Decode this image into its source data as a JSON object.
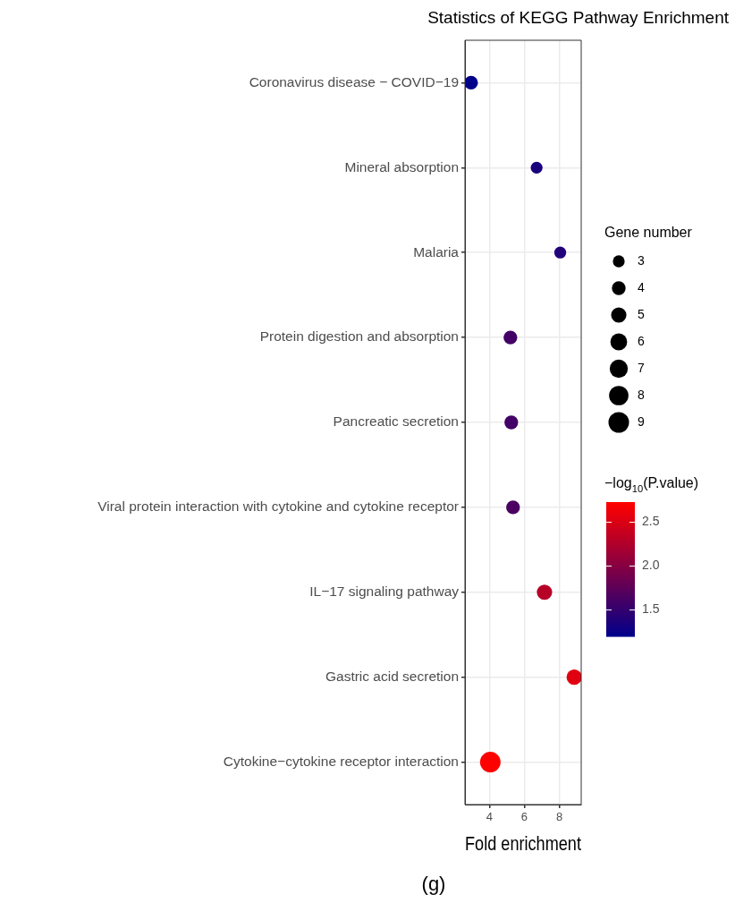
{
  "chart_data": {
    "type": "bubble",
    "title": "Statistics of KEGG Pathway Enrichment",
    "xlabel": "Fold enrichment",
    "legend_title": "Gene number",
    "clabel": "−log$_{10}$(P.value)",
    "orientation": "horizontal",
    "categories": [
      "Coronavirus disease − COVID−19",
      "Mineral absorption",
      "Malaria",
      "Protein digestion and absorption",
      "Pancreatic secretion",
      "Viral protein interaction with cytokine and cytokine receptor",
      "IL−17 signaling pathway",
      "Gastric acid secretion",
      "Cytokine−cytokine receptor interaction"
    ],
    "values": [
      2.95,
      6.7,
      8.05,
      5.2,
      5.25,
      5.35,
      7.15,
      8.85,
      4.05
    ],
    "sizes": [
      4,
      3,
      3,
      4,
      4,
      4,
      5,
      5,
      9
    ],
    "cvalues": [
      1.2,
      1.35,
      1.4,
      1.6,
      1.6,
      1.65,
      2.3,
      2.55,
      2.73
    ],
    "size_legend": [
      3,
      4,
      5,
      6,
      7,
      8,
      9
    ],
    "clim": [
      1.2,
      2.73
    ],
    "cticks": [
      {
        "value": 1.5,
        "label": "1.5"
      },
      {
        "value": 2,
        "label": "2.0"
      },
      {
        "value": 2.5,
        "label": "2.5"
      }
    ],
    "xlim": [
      2.6,
      9.25
    ],
    "xticks": [
      4,
      6,
      8
    ],
    "grid": true,
    "annotations": [
      "(g)"
    ]
  }
}
